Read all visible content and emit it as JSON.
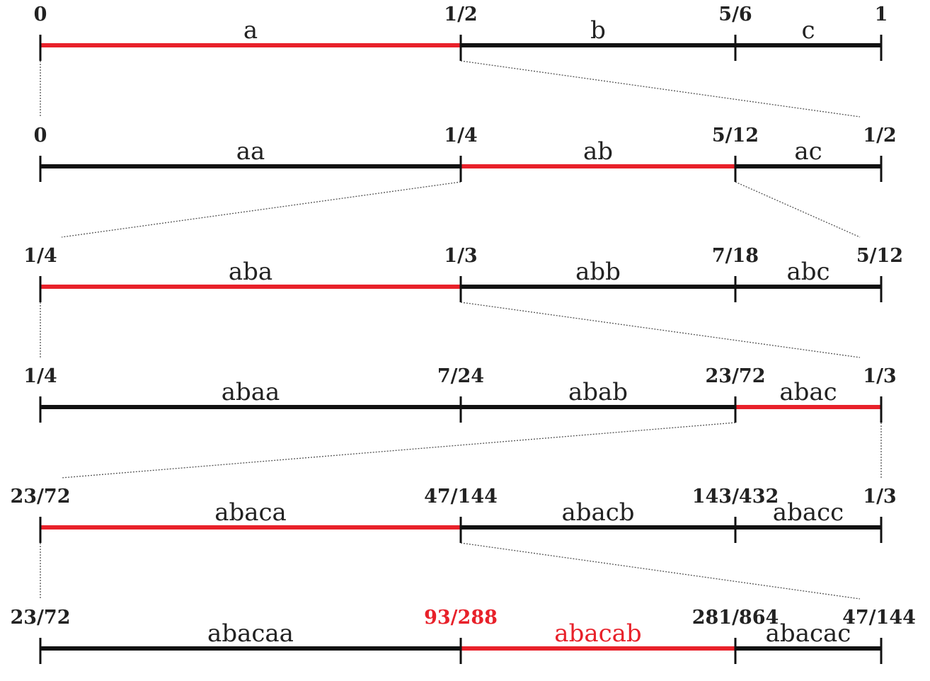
{
  "colors": {
    "line": "#111111",
    "highlight": "#e8212a",
    "connector": "#555555",
    "text": "#222222"
  },
  "rows": [
    {
      "ticks": [
        "0",
        "1/2",
        "5/6",
        "1"
      ],
      "segments": [
        "a",
        "b",
        "c"
      ],
      "highlight": 0,
      "highlight_text": false
    },
    {
      "ticks": [
        "0",
        "1/4",
        "5/12",
        "1/2"
      ],
      "segments": [
        "aa",
        "ab",
        "ac"
      ],
      "highlight": 1,
      "highlight_text": false
    },
    {
      "ticks": [
        "1/4",
        "1/3",
        "7/18",
        "5/12"
      ],
      "segments": [
        "aba",
        "abb",
        "abc"
      ],
      "highlight": 0,
      "highlight_text": false
    },
    {
      "ticks": [
        "1/4",
        "7/24",
        "23/72",
        "1/3"
      ],
      "segments": [
        "abaa",
        "abab",
        "abac"
      ],
      "highlight": 2,
      "highlight_text": false
    },
    {
      "ticks": [
        "23/72",
        "47/144",
        "143/432",
        "1/3"
      ],
      "segments": [
        "abaca",
        "abacb",
        "abacc"
      ],
      "highlight": 0,
      "highlight_text": false
    },
    {
      "ticks": [
        "23/72",
        "93/288",
        "281/864",
        "47/144"
      ],
      "segments": [
        "abacaa",
        "abacab",
        "abacac"
      ],
      "highlight": 1,
      "highlight_text": true
    }
  ]
}
